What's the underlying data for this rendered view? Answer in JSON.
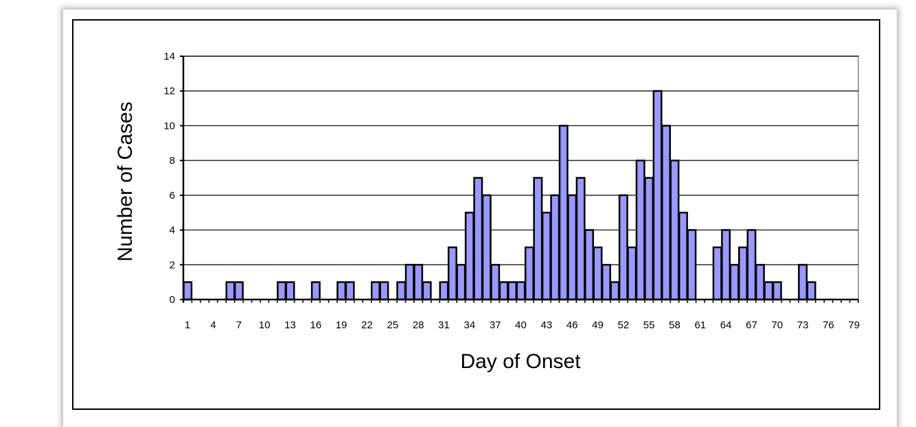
{
  "chart_data": {
    "type": "bar",
    "title": "",
    "xlabel": "Day of Onset",
    "ylabel": "Number of Cases",
    "ylim": [
      0,
      14
    ],
    "yticks": [
      0,
      2,
      4,
      6,
      8,
      10,
      12,
      14
    ],
    "xtick_labels": [
      "1",
      "4",
      "7",
      "10",
      "13",
      "16",
      "19",
      "22",
      "25",
      "28",
      "31",
      "34",
      "37",
      "40",
      "43",
      "46",
      "49",
      "52",
      "55",
      "58",
      "61",
      "64",
      "67",
      "70",
      "73",
      "76",
      "79"
    ],
    "categories": [
      1,
      2,
      3,
      4,
      5,
      6,
      7,
      8,
      9,
      10,
      11,
      12,
      13,
      14,
      15,
      16,
      17,
      18,
      19,
      20,
      21,
      22,
      23,
      24,
      25,
      26,
      27,
      28,
      29,
      30,
      31,
      32,
      33,
      34,
      35,
      36,
      37,
      38,
      39,
      40,
      41,
      42,
      43,
      44,
      45,
      46,
      47,
      48,
      49,
      50,
      51,
      52,
      53,
      54,
      55,
      56,
      57,
      58,
      59,
      60,
      61,
      62,
      63,
      64,
      65,
      66,
      67,
      68,
      69,
      70,
      71,
      72,
      73,
      74,
      75,
      76,
      77,
      78,
      79
    ],
    "values": [
      1,
      0,
      0,
      0,
      0,
      1,
      1,
      0,
      0,
      0,
      0,
      1,
      1,
      0,
      0,
      1,
      0,
      0,
      1,
      1,
      0,
      0,
      1,
      1,
      0,
      1,
      2,
      2,
      1,
      0,
      1,
      3,
      2,
      5,
      7,
      6,
      2,
      1,
      1,
      1,
      3,
      7,
      5,
      6,
      10,
      6,
      7,
      4,
      3,
      2,
      1,
      6,
      3,
      8,
      7,
      12,
      10,
      8,
      5,
      4,
      0,
      0,
      3,
      4,
      2,
      3,
      4,
      2,
      1,
      1,
      0,
      0,
      2,
      1,
      0,
      0,
      0,
      0,
      0
    ],
    "bar_color": "#9999ff",
    "bar_edge_color": "#000000",
    "grid": true,
    "legend": "none"
  }
}
